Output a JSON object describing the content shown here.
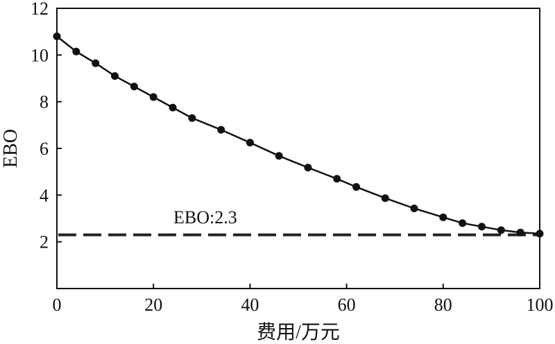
{
  "chart_data": {
    "type": "line",
    "xlabel": "费用/万元",
    "ylabel": "EBO",
    "xlim": [
      0,
      100
    ],
    "ylim": [
      0,
      12
    ],
    "xticks": [
      0,
      20,
      40,
      60,
      80,
      100
    ],
    "yticks": [
      2,
      4,
      6,
      8,
      10,
      12
    ],
    "grid": false,
    "series": [
      {
        "x": [
          0,
          4,
          8,
          12,
          16,
          20,
          24,
          28,
          34,
          40,
          46,
          52,
          58,
          62,
          68,
          74,
          80,
          84,
          88,
          92,
          96,
          100
        ],
        "values": [
          10.8,
          10.15,
          9.65,
          9.1,
          8.65,
          8.2,
          7.75,
          7.3,
          6.8,
          6.25,
          5.68,
          5.18,
          4.7,
          4.35,
          3.87,
          3.43,
          3.05,
          2.8,
          2.65,
          2.5,
          2.4,
          2.35
        ]
      }
    ],
    "reference_line": {
      "y": 2.3,
      "label": "EBO:2.3"
    }
  }
}
